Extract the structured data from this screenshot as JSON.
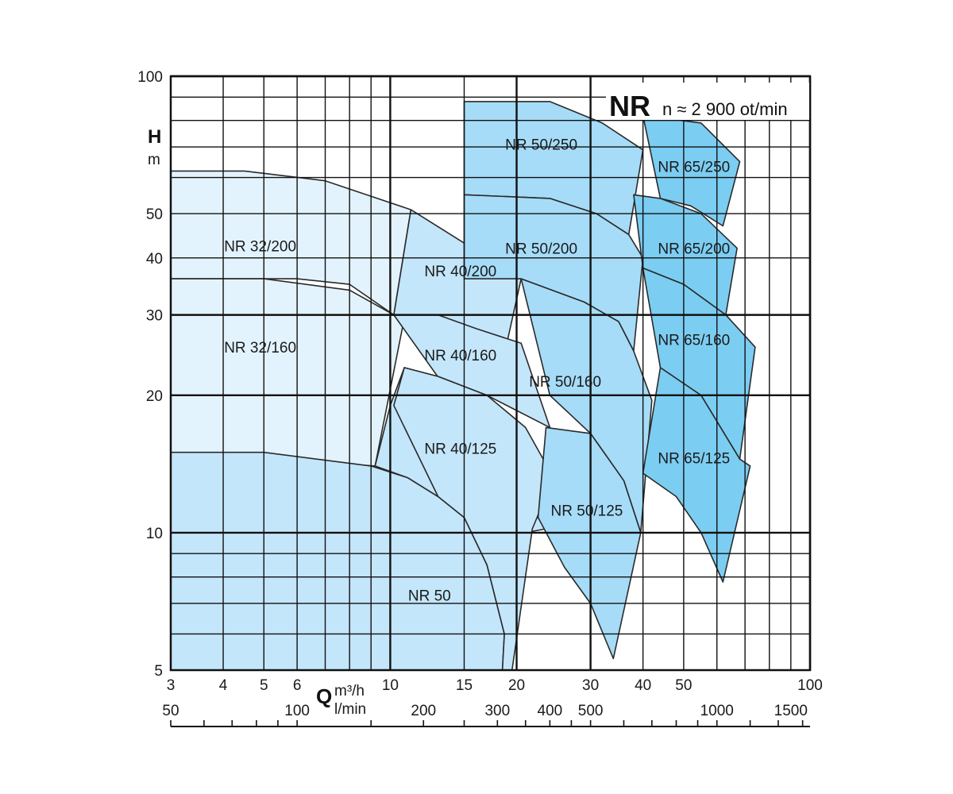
{
  "chart_data": {
    "type": "area",
    "title": "NR",
    "subtitle": "n ≈ 2 900 ot/min",
    "ylabel": "H",
    "yunit": "m",
    "xlabel": "Q",
    "xunit_primary": "m³/h",
    "xunit_secondary": "l/min",
    "x_scale": "log",
    "y_scale": "log",
    "xlim": [
      3,
      100
    ],
    "ylim": [
      5,
      100
    ],
    "x_ticks_primary": [
      3,
      4,
      5,
      6,
      10,
      15,
      20,
      30,
      40,
      50,
      100
    ],
    "x_ticks_secondary": [
      50,
      100,
      200,
      300,
      400,
      500,
      1000,
      1500
    ],
    "y_ticks": [
      5,
      10,
      20,
      30,
      40,
      50,
      100
    ],
    "grid": true,
    "colors": {
      "frame": "#111111",
      "zone_32": "#e3f3fd",
      "zone_40": "#c4e6fb",
      "zone_50": "#a6dcf8",
      "zone_65": "#7ccdf2",
      "highlight_label": "#e03c45"
    },
    "series": [
      {
        "name": "NR 32/200",
        "label_at": [
          4.9,
          42.5
        ],
        "outline": [
          [
            3,
            62
          ],
          [
            4.5,
            62
          ],
          [
            7,
            59
          ],
          [
            11.2,
            51
          ],
          [
            10.2,
            30
          ],
          [
            8,
            35
          ],
          [
            6,
            36
          ],
          [
            3,
            36
          ]
        ]
      },
      {
        "name": "NR 32/160",
        "label_at": [
          4.9,
          25.5
        ],
        "outline": [
          [
            3,
            36
          ],
          [
            5,
            36
          ],
          [
            8,
            34
          ],
          [
            10.2,
            30
          ],
          [
            10.8,
            29.5
          ],
          [
            9.2,
            14
          ],
          [
            3,
            15
          ]
        ]
      },
      {
        "name": "NR 50",
        "label_at": [
          12.4,
          7.3
        ],
        "highlight": true,
        "outline": [
          [
            3,
            15
          ],
          [
            5,
            15
          ],
          [
            9,
            14
          ],
          [
            11,
            13.2
          ],
          [
            13,
            12
          ],
          [
            15,
            10.8
          ],
          [
            17,
            8.5
          ],
          [
            18.7,
            6
          ],
          [
            18.5,
            5
          ],
          [
            3,
            5
          ]
        ]
      },
      {
        "name": "NR 40/200",
        "label_at": [
          14.7,
          37.5
        ],
        "outline": [
          [
            11.2,
            51
          ],
          [
            20.5,
            36
          ],
          [
            18.5,
            23.5
          ],
          [
            13,
            27
          ],
          [
            10.2,
            30
          ]
        ]
      },
      {
        "name": "NR 40/160",
        "label_at": [
          14.7,
          24.5
        ],
        "outline": [
          [
            10.2,
            30
          ],
          [
            13,
            30
          ],
          [
            16,
            28
          ],
          [
            20.5,
            26
          ],
          [
            24,
            17
          ],
          [
            17,
            20
          ],
          [
            13,
            22
          ],
          [
            10.8,
            23
          ],
          [
            10,
            19
          ],
          [
            9.2,
            14
          ],
          [
            11,
            13.2
          ],
          [
            13,
            12
          ],
          [
            16,
            11
          ],
          [
            21,
            10
          ],
          [
            23.5,
            10.2
          ]
        ]
      },
      {
        "name": "NR 40/125",
        "label_at": [
          14.7,
          15.3
        ],
        "outline": [
          [
            10.8,
            23
          ],
          [
            13,
            22
          ],
          [
            17,
            20
          ],
          [
            21,
            17
          ],
          [
            24.5,
            13.2
          ],
          [
            21.8,
            10.2
          ],
          [
            19.8,
            5.5
          ],
          [
            19.5,
            5
          ],
          [
            18.5,
            5
          ],
          [
            18.7,
            6
          ],
          [
            17,
            8.5
          ],
          [
            15,
            10.8
          ],
          [
            13,
            12
          ],
          [
            10.2,
            19
          ]
        ]
      },
      {
        "name": "NR 50/250",
        "label_at": [
          22.9,
          71.0
        ],
        "outline": [
          [
            15,
            88
          ],
          [
            24,
            88
          ],
          [
            32,
            79
          ],
          [
            40,
            69
          ],
          [
            37,
            45
          ],
          [
            31,
            50
          ],
          [
            24,
            54
          ],
          [
            15,
            55
          ]
        ]
      },
      {
        "name": "NR 50/200",
        "label_at": [
          22.9,
          42.0
        ],
        "outline": [
          [
            15,
            55
          ],
          [
            24,
            54
          ],
          [
            31,
            50
          ],
          [
            37,
            45
          ],
          [
            40,
            40
          ],
          [
            38,
            25
          ],
          [
            35,
            29
          ],
          [
            29,
            32
          ],
          [
            20.5,
            36
          ],
          [
            15,
            36
          ]
        ]
      },
      {
        "name": "NR 50/160",
        "label_at": [
          26.1,
          21.5
        ],
        "outline": [
          [
            20.5,
            36
          ],
          [
            29,
            32
          ],
          [
            35,
            29
          ],
          [
            38,
            25
          ],
          [
            42,
            19.5
          ],
          [
            39.5,
            10
          ],
          [
            36,
            13
          ],
          [
            30,
            16.5
          ],
          [
            24,
            20
          ]
        ]
      },
      {
        "name": "NR 50/125",
        "label_at": [
          29.4,
          11.2
        ],
        "outline": [
          [
            23.5,
            17
          ],
          [
            30,
            16.5
          ],
          [
            36,
            13
          ],
          [
            39.5,
            10
          ],
          [
            34,
            5.3
          ],
          [
            30,
            7
          ],
          [
            26,
            8.4
          ],
          [
            22.5,
            10.8
          ]
        ]
      },
      {
        "name": "NR 65/250",
        "label_at": [
          52.9,
          63.5
        ],
        "outline": [
          [
            40,
            82
          ],
          [
            55,
            79
          ],
          [
            68,
            65
          ],
          [
            62,
            47
          ],
          [
            52,
            52
          ],
          [
            44,
            54
          ]
        ]
      },
      {
        "name": "NR 65/200",
        "label_at": [
          52.9,
          42.0
        ],
        "outline": [
          [
            38,
            55
          ],
          [
            44,
            54
          ],
          [
            55,
            50
          ],
          [
            67,
            42
          ],
          [
            63,
            30
          ],
          [
            50,
            35
          ],
          [
            40,
            38
          ]
        ]
      },
      {
        "name": "NR 65/160",
        "label_at": [
          52.9,
          26.5
        ],
        "outline": [
          [
            40,
            38
          ],
          [
            50,
            35
          ],
          [
            63,
            30
          ],
          [
            74,
            25.5
          ],
          [
            68,
            14.5
          ],
          [
            55,
            20
          ],
          [
            44,
            23
          ]
        ]
      },
      {
        "name": "NR 65/125",
        "label_at": [
          52.9,
          14.6
        ],
        "outline": [
          [
            44,
            23
          ],
          [
            55,
            20
          ],
          [
            68,
            14.5
          ],
          [
            72,
            14
          ],
          [
            62,
            7.8
          ],
          [
            55,
            10
          ],
          [
            48,
            12
          ],
          [
            40,
            13.5
          ]
        ]
      }
    ]
  }
}
